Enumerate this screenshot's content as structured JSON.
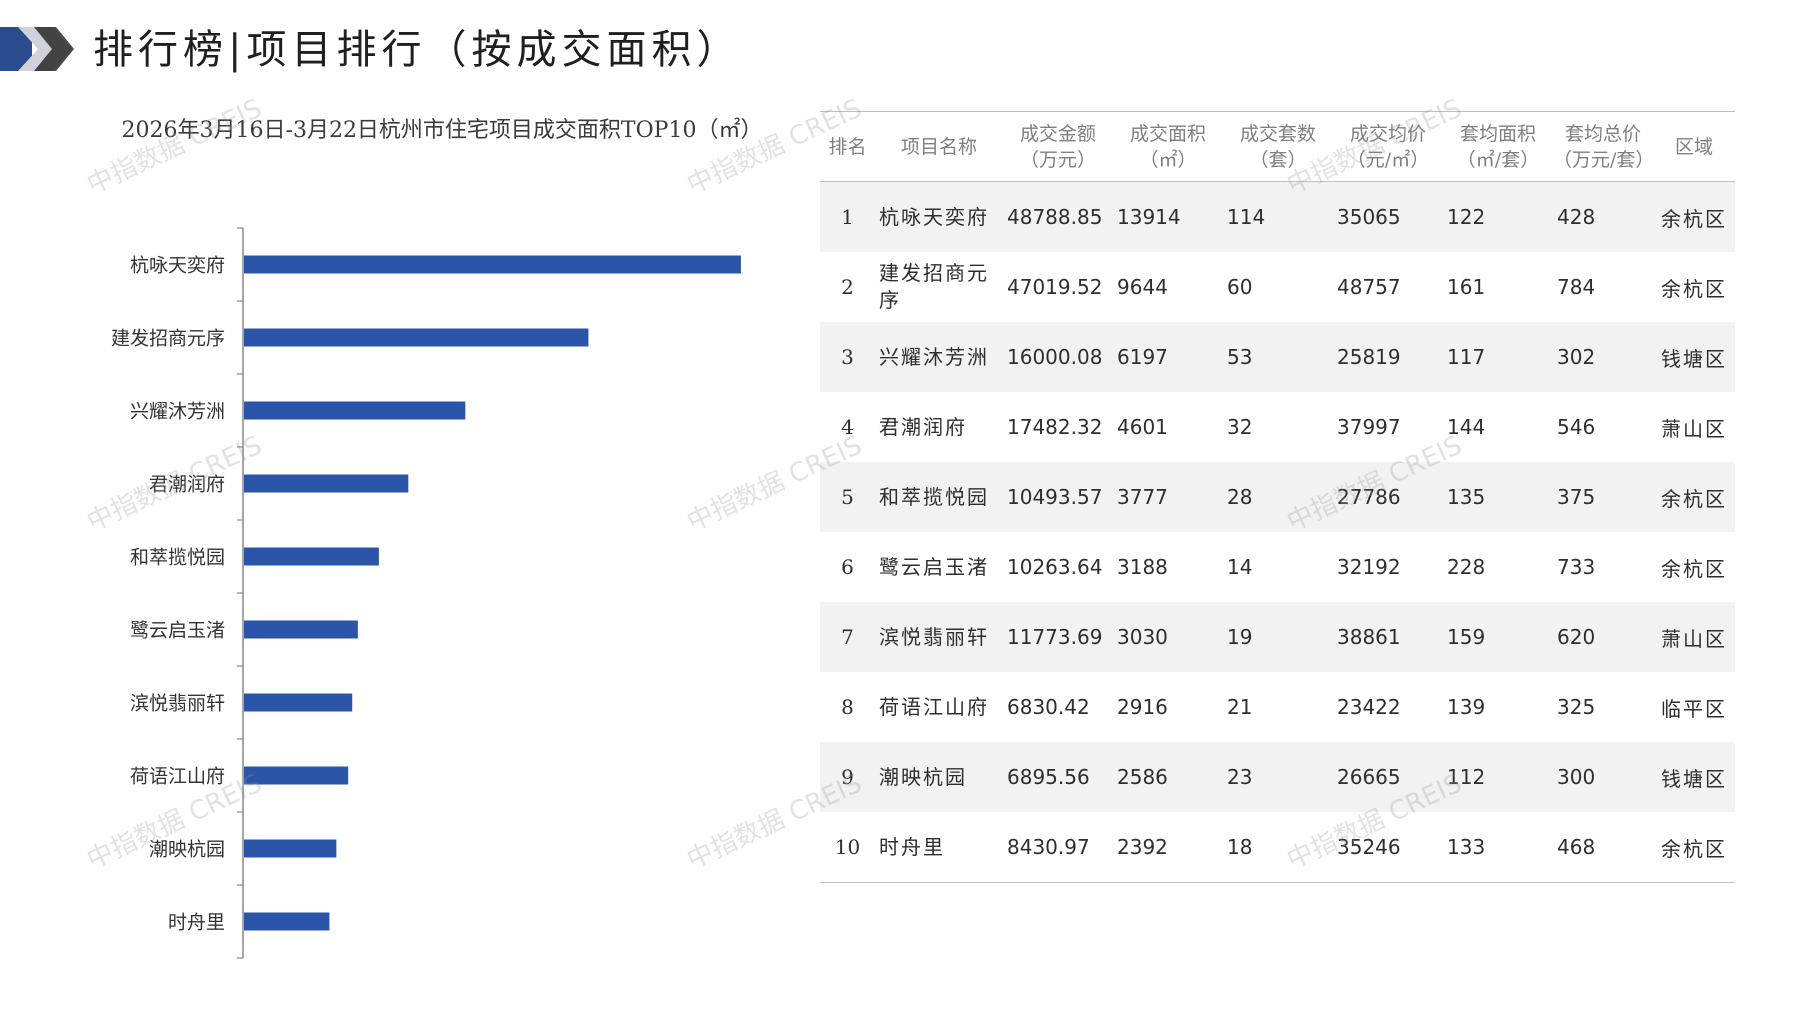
{
  "page_title": "排行榜|项目排行（按成交面积）",
  "chart_data": {
    "type": "bar",
    "orientation": "horizontal",
    "title": "2026年3月16日-3月22日杭州市住宅项目成交面积TOP10（㎡）",
    "categories": [
      "杭咏天奕府",
      "建发招商元序",
      "兴耀沐芳洲",
      "君潮润府",
      "和萃揽悦园",
      "鹭云启玉渚",
      "滨悦翡丽轩",
      "荷语江山府",
      "潮映杭园",
      "时舟里"
    ],
    "values": [
      13914,
      9644,
      6197,
      4601,
      3777,
      3188,
      3030,
      2916,
      2586,
      2392
    ],
    "xlim": [
      0,
      14000
    ],
    "bar_color": "#2b55a8",
    "grid": false
  },
  "table": {
    "headers": [
      "排名",
      "项目名称",
      "成交金额（万元）",
      "成交面积（㎡）",
      "成交套数（套）",
      "成交均价（元/㎡）",
      "套均面积（㎡/套）",
      "套均总价（万元/套）",
      "区域"
    ],
    "rows": [
      [
        "1",
        "杭咏天奕府",
        "48788.85",
        "13914",
        "114",
        "35065",
        "122",
        "428",
        "余杭区"
      ],
      [
        "2",
        "建发招商元序",
        "47019.52",
        "9644",
        "60",
        "48757",
        "161",
        "784",
        "余杭区"
      ],
      [
        "3",
        "兴耀沐芳洲",
        "16000.08",
        "6197",
        "53",
        "25819",
        "117",
        "302",
        "钱塘区"
      ],
      [
        "4",
        "君潮润府",
        "17482.32",
        "4601",
        "32",
        "37997",
        "144",
        "546",
        "萧山区"
      ],
      [
        "5",
        "和萃揽悦园",
        "10493.57",
        "3777",
        "28",
        "27786",
        "135",
        "375",
        "余杭区"
      ],
      [
        "6",
        "鹭云启玉渚",
        "10263.64",
        "3188",
        "14",
        "32192",
        "228",
        "733",
        "余杭区"
      ],
      [
        "7",
        "滨悦翡丽轩",
        "11773.69",
        "3030",
        "19",
        "38861",
        "159",
        "620",
        "萧山区"
      ],
      [
        "8",
        "荷语江山府",
        "6830.42",
        "2916",
        "21",
        "23422",
        "139",
        "325",
        "临平区"
      ],
      [
        "9",
        "潮映杭园",
        "6895.56",
        "2586",
        "23",
        "26665",
        "112",
        "300",
        "钱塘区"
      ],
      [
        "10",
        "时舟里",
        "8430.97",
        "2392",
        "18",
        "35246",
        "133",
        "468",
        "余杭区"
      ]
    ]
  },
  "watermark": "中指数据 CREIS"
}
